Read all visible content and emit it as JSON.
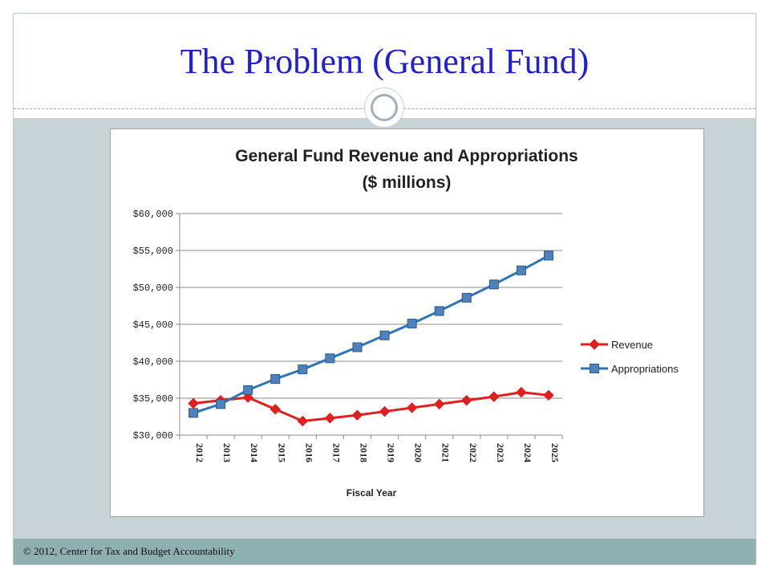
{
  "slide": {
    "title": "The Problem (General Fund)",
    "footer": "© 2012, Center for Tax and Budget Accountability"
  },
  "colors": {
    "title": "#1f1fd6",
    "revenue": "#e01f1f",
    "appropriations": "#2e75b6",
    "appropriations_marker": "#4f81bd"
  },
  "chart_data": {
    "type": "line",
    "title_lines": [
      "General Fund Revenue and Appropriations",
      "($ millions)"
    ],
    "xlabel": "Fiscal Year",
    "ylabel": "",
    "x": [
      "2012",
      "2013",
      "2014",
      "2015",
      "2016",
      "2017",
      "2018",
      "2019",
      "2020",
      "2021",
      "2022",
      "2023",
      "2024",
      "2025"
    ],
    "ylim": [
      30000,
      60000
    ],
    "yticks": [
      30000,
      35000,
      40000,
      45000,
      50000,
      55000,
      60000
    ],
    "ytick_labels": [
      "$30,000",
      "$35,000",
      "$40,000",
      "$45,000",
      "$50,000",
      "$55,000",
      "$60,000"
    ],
    "grid": true,
    "legend_position": "right",
    "series": [
      {
        "name": "Revenue",
        "marker": "diamond",
        "values": [
          34300,
          34700,
          35100,
          33500,
          31900,
          32300,
          32700,
          33200,
          33700,
          34200,
          34700,
          35200,
          35800,
          35400
        ]
      },
      {
        "name": "Appropriations",
        "marker": "square",
        "values": [
          33000,
          34200,
          36100,
          37600,
          38900,
          40400,
          41900,
          43500,
          45100,
          46800,
          48600,
          50400,
          52300,
          54300
        ]
      }
    ]
  }
}
